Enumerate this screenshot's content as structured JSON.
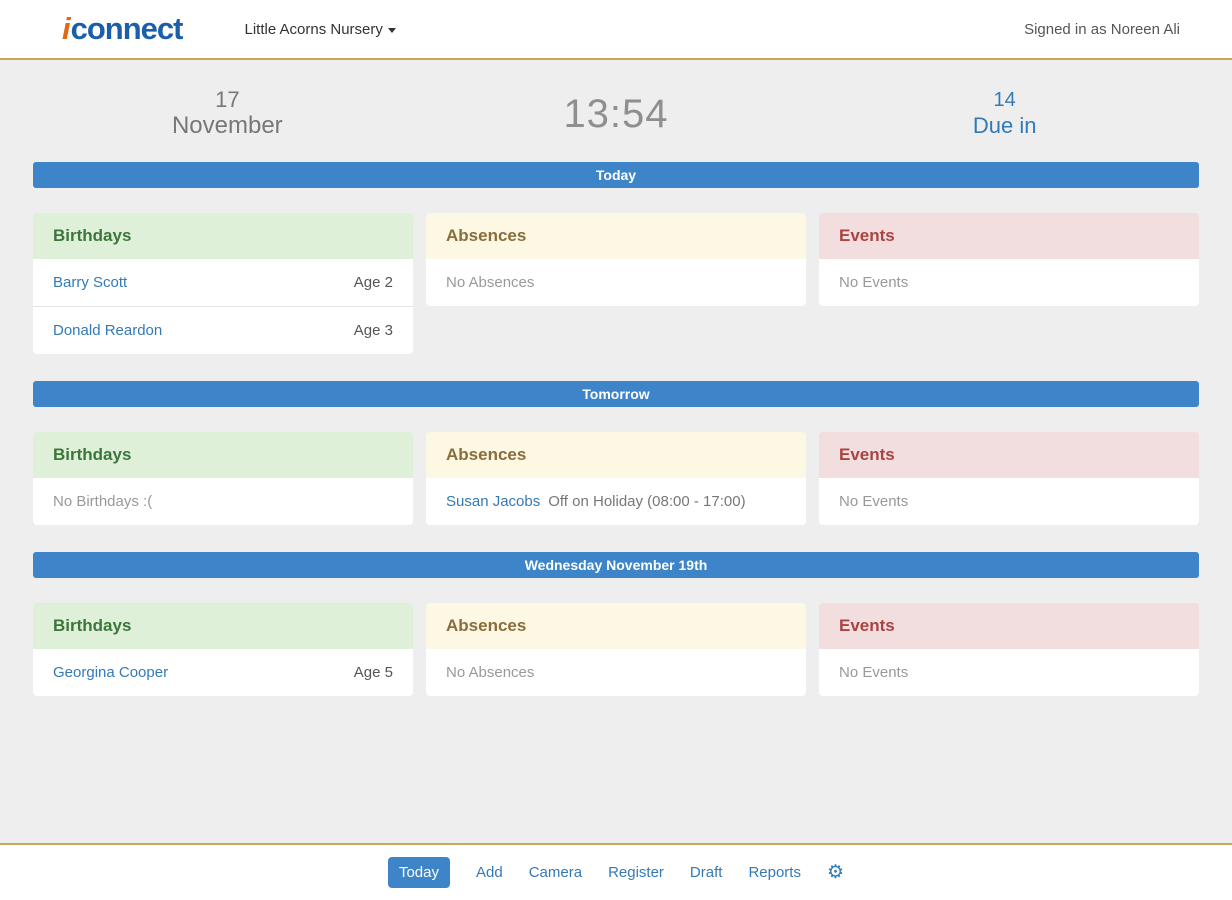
{
  "header": {
    "logo_i": "i",
    "logo_rest": "connect",
    "nursery": "Little Acorns Nursery",
    "signed_in": "Signed in as Noreen Ali"
  },
  "status": {
    "day": "17",
    "month": "November",
    "clock": "13:54",
    "due_count": "14",
    "due_label": "Due in"
  },
  "sections": [
    {
      "banner": "Today",
      "birthdays_title": "Birthdays",
      "absences_title": "Absences",
      "events_title": "Events",
      "birthdays": [
        {
          "name": "Barry Scott",
          "age": "Age 2"
        },
        {
          "name": "Donald Reardon",
          "age": "Age 3"
        }
      ],
      "absences_empty": "No Absences",
      "events_empty": "No Events"
    },
    {
      "banner": "Tomorrow",
      "birthdays_title": "Birthdays",
      "absences_title": "Absences",
      "events_title": "Events",
      "birthdays_empty": "No Birthdays :(",
      "absences": [
        {
          "name": "Susan Jacobs",
          "detail": "Off on Holiday (08:00 - 17:00)"
        }
      ],
      "events_empty": "No Events"
    },
    {
      "banner": "Wednesday November 19th",
      "birthdays_title": "Birthdays",
      "absences_title": "Absences",
      "events_title": "Events",
      "birthdays": [
        {
          "name": "Georgina Cooper",
          "age": "Age 5"
        }
      ],
      "absences_empty": "No Absences",
      "events_empty": "No Events"
    }
  ],
  "footer": {
    "items": [
      {
        "label": "Today"
      },
      {
        "label": "Add"
      },
      {
        "label": "Camera"
      },
      {
        "label": "Register"
      },
      {
        "label": "Draft"
      },
      {
        "label": "Reports"
      }
    ],
    "gear": "⚙"
  },
  "colors": {
    "banner_blue": "#3d85c8",
    "link_blue": "#337ab7",
    "birthdays_bg": "#dff0d8",
    "birthdays_text": "#3c763d",
    "absences_bg": "#fcf8e3",
    "absences_text": "#8a6d3b",
    "events_bg": "#f2dede",
    "events_text": "#a94442",
    "header_rule_gold": "#c9a85c",
    "page_bg": "#eeeeee"
  }
}
